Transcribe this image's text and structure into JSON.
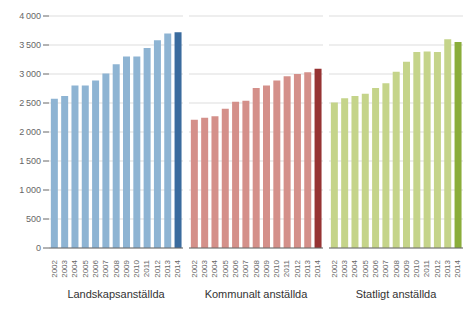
{
  "chart_data": [
    {
      "type": "bar",
      "xlabel": "Landskapsanställda",
      "categories": [
        "2002",
        "2003",
        "2004",
        "2005",
        "2006",
        "2007",
        "2008",
        "2009",
        "2010",
        "2011",
        "2012",
        "2013",
        "2014"
      ],
      "values": [
        2575,
        2620,
        2800,
        2800,
        2890,
        3010,
        3170,
        3300,
        3300,
        3450,
        3580,
        3700,
        3720
      ],
      "colors": [
        "#8EB4D3",
        "#8EB4D3",
        "#8EB4D3",
        "#8EB4D3",
        "#8EB4D3",
        "#8EB4D3",
        "#8EB4D3",
        "#8EB4D3",
        "#8EB4D3",
        "#8EB4D3",
        "#8EB4D3",
        "#8EB4D3",
        "#3A6B9E"
      ],
      "ylim": [
        0,
        4000
      ],
      "yticks": [
        0,
        500,
        {
          "value": 1000,
          "label": "1 000"
        },
        {
          "value": 1500,
          "label": "1 500"
        },
        {
          "value": 2000,
          "label": "2 000"
        },
        {
          "value": 2500,
          "label": "2 500"
        },
        {
          "value": 3000,
          "label": "3 000"
        },
        {
          "value": 3500,
          "label": "3 500"
        },
        {
          "value": 4000,
          "label": "4 000"
        }
      ],
      "grid": true
    },
    {
      "type": "bar",
      "xlabel": "Kommunalt anställda",
      "categories": [
        "2002",
        "2003",
        "2004",
        "2005",
        "2006",
        "2007",
        "2008",
        "2009",
        "2010",
        "2011",
        "2012",
        "2013",
        "2014"
      ],
      "values": [
        2210,
        2245,
        2270,
        2400,
        2520,
        2540,
        2760,
        2800,
        2890,
        2960,
        3000,
        3030,
        3090
      ],
      "colors": [
        "#D4908A",
        "#D4908A",
        "#D4908A",
        "#D4908A",
        "#D4908A",
        "#D4908A",
        "#D4908A",
        "#D4908A",
        "#D4908A",
        "#D4908A",
        "#D4908A",
        "#D4908A",
        "#963333"
      ],
      "ylim": [
        0,
        4000
      ],
      "yticks": [
        0,
        500,
        {
          "value": 1000,
          "label": "1 000"
        },
        {
          "value": 1500,
          "label": "1 500"
        },
        {
          "value": 2000,
          "label": "2 000"
        },
        {
          "value": 2500,
          "label": "2 500"
        },
        {
          "value": 3000,
          "label": "3 000"
        },
        {
          "value": 3500,
          "label": "3 500"
        },
        {
          "value": 4000,
          "label": "4 000"
        }
      ],
      "grid": true,
      "tick_labels": "x"
    },
    {
      "type": "bar",
      "xlabel": "Statligt anställda",
      "categories": [
        "2002",
        "2003",
        "2004",
        "2005",
        "2006",
        "2007",
        "2008",
        "2009",
        "2010",
        "2011",
        "2012",
        "2013",
        "2014"
      ],
      "values": [
        2510,
        2580,
        2620,
        2660,
        2760,
        2840,
        3040,
        3210,
        3380,
        3390,
        3380,
        3600,
        3550
      ],
      "colors": [
        "#C5D48A",
        "#C5D48A",
        "#C5D48A",
        "#C5D48A",
        "#C5D48A",
        "#C5D48A",
        "#C5D48A",
        "#C5D48A",
        "#C5D48A",
        "#C5D48A",
        "#C5D48A",
        "#C5D48A",
        "#8AAD3A"
      ],
      "ylim": [
        0,
        4000
      ],
      "yticks": [
        0,
        500,
        {
          "value": 1000,
          "label": "1 000"
        },
        {
          "value": 1500,
          "label": "1 500"
        },
        {
          "value": 2000,
          "label": "2 000"
        },
        {
          "value": 2500,
          "label": "2 500"
        },
        {
          "value": 3000,
          "label": "3 000"
        },
        {
          "value": 3500,
          "label": "3 500"
        },
        {
          "value": 4000,
          "label": "4 000"
        }
      ],
      "grid": true,
      "tick_labels": "x"
    }
  ]
}
